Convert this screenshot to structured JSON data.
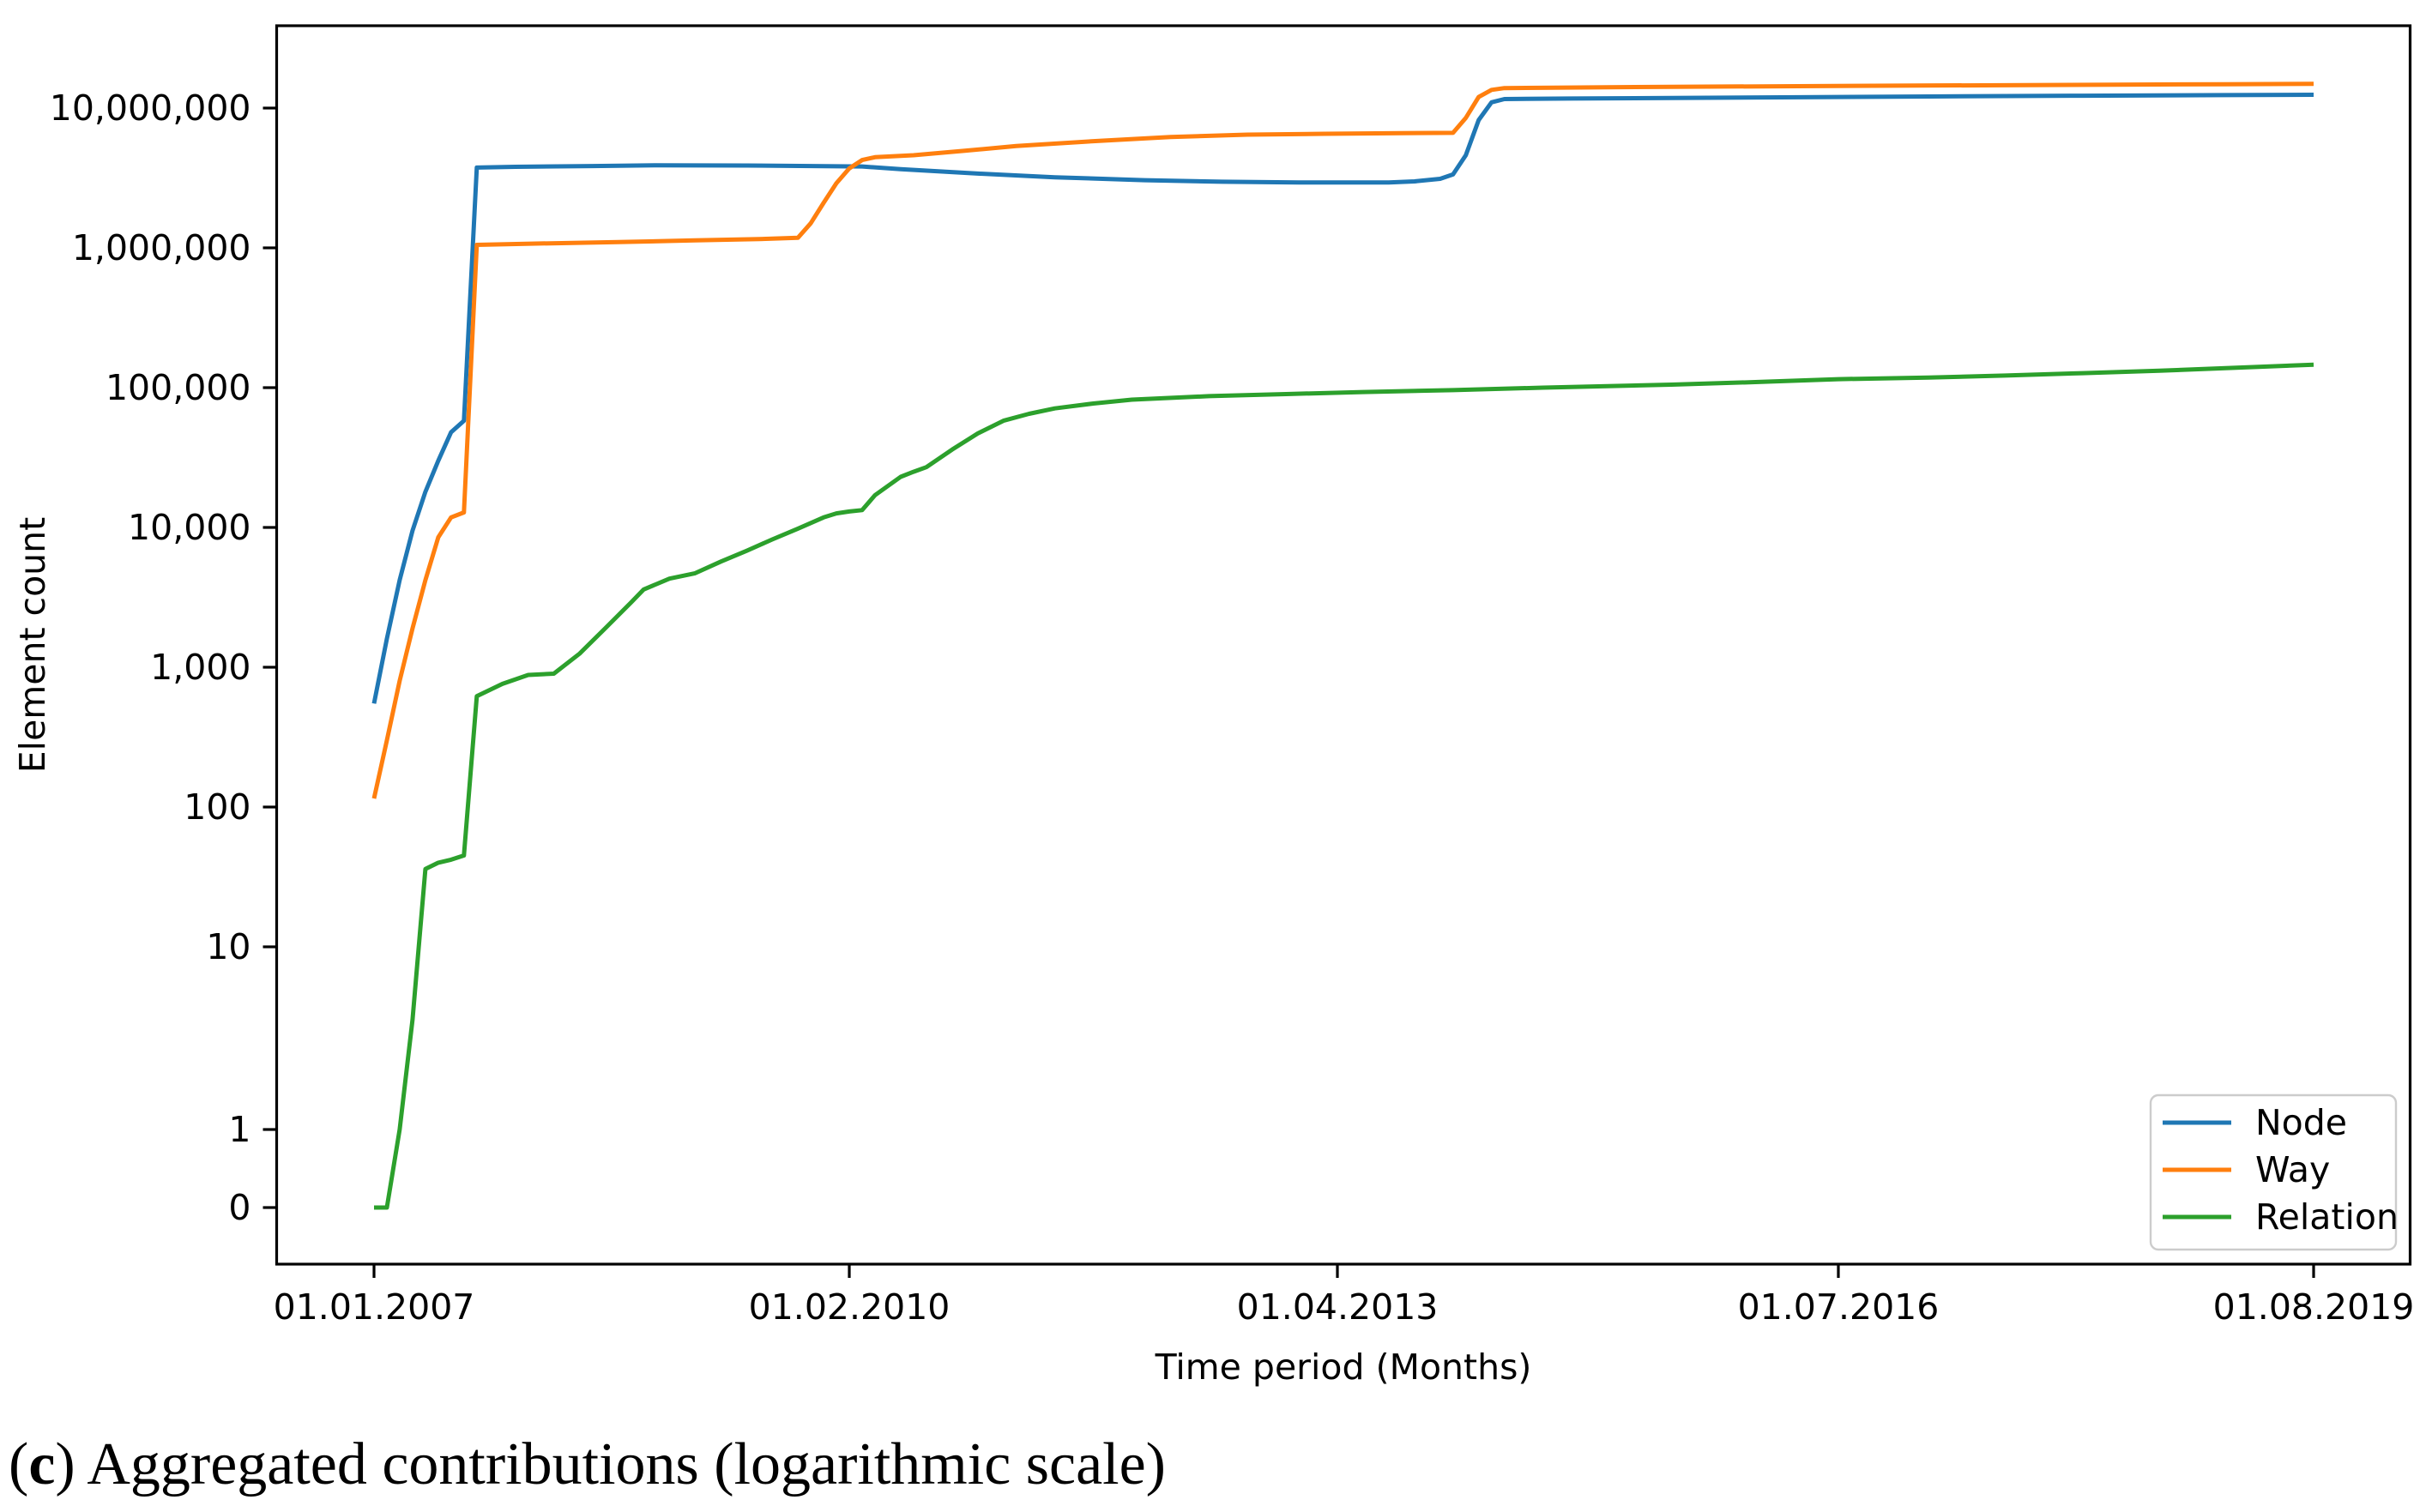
{
  "caption": {
    "open_paren": "(",
    "bold_letter": "c",
    "rest": ") Aggregated contributions (logarithmic scale)"
  },
  "chart_data": {
    "type": "line",
    "title": "",
    "xlabel": "Time period (Months)",
    "ylabel": "Element count",
    "scale_y": "symlog",
    "grid": "off",
    "x_ticks": [
      {
        "label": "01.01.2007",
        "month": 0
      },
      {
        "label": "01.02.2010",
        "month": 37
      },
      {
        "label": "01.04.2013",
        "month": 75
      },
      {
        "label": "01.07.2016",
        "month": 114
      },
      {
        "label": "01.08.2019",
        "month": 151
      }
    ],
    "x_range_months": [
      0,
      151
    ],
    "y_ticks": [
      {
        "label": "10,000,000",
        "value": 10000000
      },
      {
        "label": "1,000,000",
        "value": 1000000
      },
      {
        "label": "100,000",
        "value": 100000
      },
      {
        "label": "10,000",
        "value": 10000
      },
      {
        "label": "1,000",
        "value": 1000
      },
      {
        "label": "100",
        "value": 100
      },
      {
        "label": "10",
        "value": 10
      },
      {
        "label": "1",
        "value": 1
      },
      {
        "label": "0",
        "value": 0
      }
    ],
    "ylim": [
      0,
      15000000
    ],
    "legend": {
      "position": "lower right",
      "entries": [
        {
          "label": "Node",
          "color": "#1f77b4"
        },
        {
          "label": "Way",
          "color": "#ff7f0e"
        },
        {
          "label": "Relation",
          "color": "#2ca02c"
        }
      ]
    },
    "series": [
      {
        "name": "Node",
        "color": "#1f77b4",
        "points": [
          [
            "2007-01",
            550
          ],
          [
            "2007-02",
            1600
          ],
          [
            "2007-03",
            4200
          ],
          [
            "2007-04",
            9500
          ],
          [
            "2007-05",
            18000
          ],
          [
            "2007-06",
            30000
          ],
          [
            "2007-07",
            48000
          ],
          [
            "2007-08",
            58000
          ],
          [
            "2007-09",
            3750000
          ],
          [
            "2007-12",
            3800000
          ],
          [
            "2008-06",
            3850000
          ],
          [
            "2008-11",
            3900000
          ],
          [
            "2009-06",
            3880000
          ],
          [
            "2010-03",
            3820000
          ],
          [
            "2010-06",
            3650000
          ],
          [
            "2010-12",
            3400000
          ],
          [
            "2011-06",
            3200000
          ],
          [
            "2012-01",
            3050000
          ],
          [
            "2012-07",
            2970000
          ],
          [
            "2013-01",
            2940000
          ],
          [
            "2013-08",
            2940000
          ],
          [
            "2013-10",
            2990000
          ],
          [
            "2013-12",
            3120000
          ],
          [
            "2014-01",
            3350000
          ],
          [
            "2014-02",
            4600000
          ],
          [
            "2014-03",
            8200000
          ],
          [
            "2014-04",
            11000000
          ],
          [
            "2014-05",
            11600000
          ],
          [
            "2014-10",
            11700000
          ],
          [
            "2015-06",
            11800000
          ],
          [
            "2016-04",
            11950000
          ],
          [
            "2017-02",
            12100000
          ],
          [
            "2018-02",
            12250000
          ],
          [
            "2019-01",
            12380000
          ],
          [
            "2019-08",
            12450000
          ]
        ]
      },
      {
        "name": "Way",
        "color": "#ff7f0e",
        "points": [
          [
            "2007-01",
            115
          ],
          [
            "2007-02",
            300
          ],
          [
            "2007-03",
            800
          ],
          [
            "2007-04",
            1900
          ],
          [
            "2007-05",
            4200
          ],
          [
            "2007-06",
            8500
          ],
          [
            "2007-07",
            11800
          ],
          [
            "2007-08",
            12800
          ],
          [
            "2007-09",
            1050000
          ],
          [
            "2008-02",
            1075000
          ],
          [
            "2008-08",
            1100000
          ],
          [
            "2009-02",
            1130000
          ],
          [
            "2009-07",
            1155000
          ],
          [
            "2009-10",
            1180000
          ],
          [
            "2009-11",
            1500000
          ],
          [
            "2009-12",
            2100000
          ],
          [
            "2010-01",
            2900000
          ],
          [
            "2010-02",
            3700000
          ],
          [
            "2010-03",
            4250000
          ],
          [
            "2010-04",
            4450000
          ],
          [
            "2010-07",
            4600000
          ],
          [
            "2010-11",
            4950000
          ],
          [
            "2011-03",
            5350000
          ],
          [
            "2011-09",
            5800000
          ],
          [
            "2012-03",
            6200000
          ],
          [
            "2012-09",
            6450000
          ],
          [
            "2013-03",
            6550000
          ],
          [
            "2013-09",
            6620000
          ],
          [
            "2014-01",
            6650000
          ],
          [
            "2014-02",
            8500000
          ],
          [
            "2014-03",
            12000000
          ],
          [
            "2014-04",
            13500000
          ],
          [
            "2014-05",
            13900000
          ],
          [
            "2015-01",
            14100000
          ],
          [
            "2016-01",
            14300000
          ],
          [
            "2017-01",
            14480000
          ],
          [
            "2018-01",
            14650000
          ],
          [
            "2019-01",
            14800000
          ],
          [
            "2019-08",
            14900000
          ]
        ]
      },
      {
        "name": "Relation",
        "color": "#2ca02c",
        "points": [
          [
            "2007-01",
            0
          ],
          [
            "2007-02",
            0
          ],
          [
            "2007-03",
            1
          ],
          [
            "2007-04",
            4
          ],
          [
            "2007-05",
            36
          ],
          [
            "2007-06",
            40
          ],
          [
            "2007-07",
            42
          ],
          [
            "2007-08",
            45
          ],
          [
            "2007-09",
            620
          ],
          [
            "2007-11",
            760
          ],
          [
            "2008-01",
            880
          ],
          [
            "2008-03",
            900
          ],
          [
            "2008-05",
            1250
          ],
          [
            "2008-07",
            1900
          ],
          [
            "2008-09",
            2900
          ],
          [
            "2008-10",
            3600
          ],
          [
            "2008-12",
            4300
          ],
          [
            "2009-02",
            4700
          ],
          [
            "2009-04",
            5700
          ],
          [
            "2009-06",
            6800
          ],
          [
            "2009-08",
            8200
          ],
          [
            "2009-10",
            9800
          ],
          [
            "2009-12",
            11800
          ],
          [
            "2010-01",
            12600
          ],
          [
            "2010-02",
            13000
          ],
          [
            "2010-03",
            13300
          ],
          [
            "2010-04",
            17000
          ],
          [
            "2010-06",
            23000
          ],
          [
            "2010-07",
            25000
          ],
          [
            "2010-08",
            27000
          ],
          [
            "2010-10",
            36000
          ],
          [
            "2010-12",
            47000
          ],
          [
            "2011-02",
            58000
          ],
          [
            "2011-04",
            65000
          ],
          [
            "2011-06",
            71000
          ],
          [
            "2011-09",
            77000
          ],
          [
            "2011-12",
            82000
          ],
          [
            "2012-06",
            87000
          ],
          [
            "2012-12",
            90000
          ],
          [
            "2013-06",
            93000
          ],
          [
            "2014-01",
            96000
          ],
          [
            "2014-08",
            100000
          ],
          [
            "2015-06",
            105000
          ],
          [
            "2016-01",
            110000
          ],
          [
            "2016-07",
            115000
          ],
          [
            "2017-02",
            118000
          ],
          [
            "2017-08",
            122000
          ],
          [
            "2018-02",
            127000
          ],
          [
            "2018-08",
            132000
          ],
          [
            "2019-02",
            139000
          ],
          [
            "2019-08",
            146000
          ]
        ]
      }
    ]
  }
}
